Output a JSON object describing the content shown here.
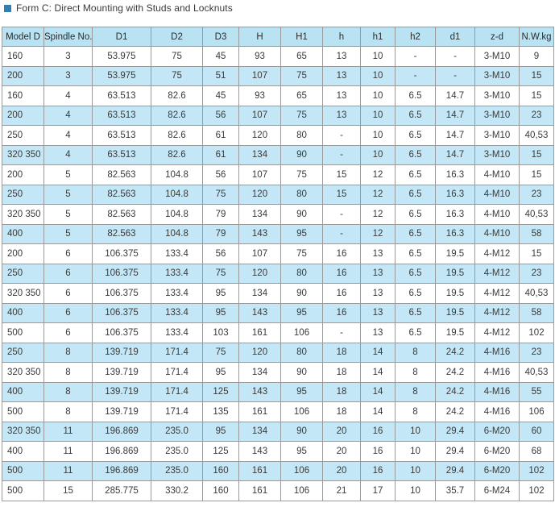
{
  "header": {
    "title": "Form C: Direct Mounting with Studs and Locknuts"
  },
  "table": {
    "columns": [
      "Model D",
      "Spindle No.",
      "D1",
      "D2",
      "D3",
      "H",
      "H1",
      "h",
      "h1",
      "h2",
      "d1",
      "z-d",
      "N.W.kg"
    ],
    "rows": [
      [
        "160",
        "3",
        "53.975",
        "75",
        "45",
        "93",
        "65",
        "13",
        "10",
        "-",
        "-",
        "3-M10",
        "9"
      ],
      [
        "200",
        "3",
        "53.975",
        "75",
        "51",
        "107",
        "75",
        "13",
        "10",
        "-",
        "-",
        "3-M10",
        "15"
      ],
      [
        "160",
        "4",
        "63.513",
        "82.6",
        "45",
        "93",
        "65",
        "13",
        "10",
        "6.5",
        "14.7",
        "3-M10",
        "15"
      ],
      [
        "200",
        "4",
        "63.513",
        "82.6",
        "56",
        "107",
        "75",
        "13",
        "10",
        "6.5",
        "14.7",
        "3-M10",
        "23"
      ],
      [
        "250",
        "4",
        "63.513",
        "82.6",
        "61",
        "120",
        "80",
        "-",
        "10",
        "6.5",
        "14.7",
        "3-M10",
        "40,53"
      ],
      [
        "320  350",
        "4",
        "63.513",
        "82.6",
        "61",
        "134",
        "90",
        "-",
        "10",
        "6.5",
        "14.7",
        "3-M10",
        "15"
      ],
      [
        "200",
        "5",
        "82.563",
        "104.8",
        "56",
        "107",
        "75",
        "15",
        "12",
        "6.5",
        "16.3",
        "4-M10",
        "15"
      ],
      [
        "250",
        "5",
        "82.563",
        "104.8",
        "75",
        "120",
        "80",
        "15",
        "12",
        "6.5",
        "16.3",
        "4-M10",
        "23"
      ],
      [
        "320  350",
        "5",
        "82.563",
        "104.8",
        "79",
        "134",
        "90",
        "-",
        "12",
        "6.5",
        "16.3",
        "4-M10",
        "40,53"
      ],
      [
        "400",
        "5",
        "82.563",
        "104.8",
        "79",
        "143",
        "95",
        "-",
        "12",
        "6.5",
        "16.3",
        "4-M10",
        "58"
      ],
      [
        "200",
        "6",
        "106.375",
        "133.4",
        "56",
        "107",
        "75",
        "16",
        "13",
        "6.5",
        "19.5",
        "4-M12",
        "15"
      ],
      [
        "250",
        "6",
        "106.375",
        "133.4",
        "75",
        "120",
        "80",
        "16",
        "13",
        "6.5",
        "19.5",
        "4-M12",
        "23"
      ],
      [
        "320  350",
        "6",
        "106.375",
        "133.4",
        "95",
        "134",
        "90",
        "16",
        "13",
        "6.5",
        "19.5",
        "4-M12",
        "40,53"
      ],
      [
        "400",
        "6",
        "106.375",
        "133.4",
        "95",
        "143",
        "95",
        "16",
        "13",
        "6.5",
        "19.5",
        "4-M12",
        "58"
      ],
      [
        "500",
        "6",
        "106.375",
        "133.4",
        "103",
        "161",
        "106",
        "-",
        "13",
        "6.5",
        "19.5",
        "4-M12",
        "102"
      ],
      [
        "250",
        "8",
        "139.719",
        "171.4",
        "75",
        "120",
        "80",
        "18",
        "14",
        "8",
        "24.2",
        "4-M16",
        "23"
      ],
      [
        "320  350",
        "8",
        "139.719",
        "171.4",
        "95",
        "134",
        "90",
        "18",
        "14",
        "8",
        "24.2",
        "4-M16",
        "40,53"
      ],
      [
        "400",
        "8",
        "139.719",
        "171.4",
        "125",
        "143",
        "95",
        "18",
        "14",
        "8",
        "24.2",
        "4-M16",
        "55"
      ],
      [
        "500",
        "8",
        "139.719",
        "171.4",
        "135",
        "161",
        "106",
        "18",
        "14",
        "8",
        "24.2",
        "4-M16",
        "106"
      ],
      [
        "320  350",
        "11",
        "196.869",
        "235.0",
        "95",
        "134",
        "90",
        "20",
        "16",
        "10",
        "29.4",
        "6-M20",
        "60"
      ],
      [
        "400",
        "11",
        "196.869",
        "235.0",
        "125",
        "143",
        "95",
        "20",
        "16",
        "10",
        "29.4",
        "6-M20",
        "68"
      ],
      [
        "500",
        "11",
        "196.869",
        "235.0",
        "160",
        "161",
        "106",
        "20",
        "16",
        "10",
        "29.4",
        "6-M20",
        "102"
      ],
      [
        "500",
        "15",
        "285.775",
        "330.2",
        "160",
        "161",
        "106",
        "21",
        "17",
        "10",
        "35.7",
        "6-M24",
        "102"
      ]
    ]
  }
}
